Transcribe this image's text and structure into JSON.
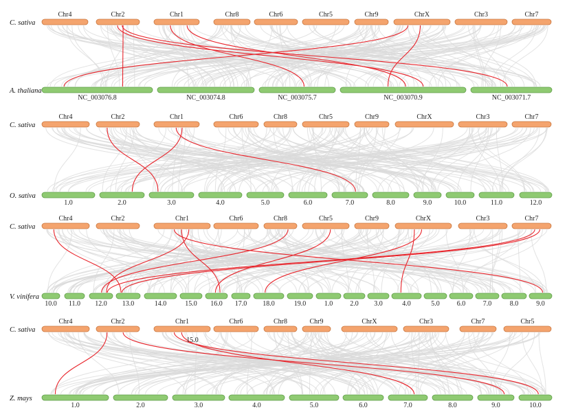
{
  "figure": {
    "title": "",
    "panels": [
      {
        "query_species": "C. sativa",
        "target_species": "A. thaliana",
        "query_chromosomes": [
          "Chr4",
          "Chr2",
          "Chr1",
          "Chr8",
          "Chr6",
          "Chr5",
          "Chr9",
          "ChrX",
          "Chr3",
          "Chr7"
        ],
        "target_chromosomes": [
          "NC_003076.8",
          "NC_003074.8",
          "NC_003075.7",
          "NC_003070.9",
          "NC_003071.7"
        ],
        "red_links": [
          {
            "from": "ChrX",
            "to": "NC_003076.8"
          },
          {
            "from": "Chr2",
            "to": "NC_003076.8"
          },
          {
            "from": "Chr2",
            "to": "NC_003070.9"
          },
          {
            "from": "Chr1",
            "to": "NC_003075.7"
          },
          {
            "from": "Chr1",
            "to": "NC_003070.9"
          },
          {
            "from": "Chr2",
            "to": "NC_003071.7"
          },
          {
            "from": "ChrX",
            "to": "NC_003070.9"
          }
        ]
      },
      {
        "query_species": "C. sativa",
        "target_species": "O. sativa",
        "query_chromosomes": [
          "Chr4",
          "Chr2",
          "Chr1",
          "Chr6",
          "Chr8",
          "Chr5",
          "Chr9",
          "ChrX",
          "Chr3",
          "Chr7"
        ],
        "target_chromosomes": [
          "1.0",
          "2.0",
          "3.0",
          "4.0",
          "5.0",
          "6.0",
          "7.0",
          "8.0",
          "9.0",
          "10.0",
          "11.0",
          "12.0"
        ],
        "red_links": [
          {
            "from": "Chr2",
            "to": "3.0"
          },
          {
            "from": "Chr1",
            "to": "2.0"
          },
          {
            "from": "Chr1",
            "to": "7.0"
          }
        ]
      },
      {
        "query_species": "C. sativa",
        "target_species": "V. vinifera",
        "query_chromosomes": [
          "Chr4",
          "Chr2",
          "Chr1",
          "Chr6",
          "Chr8",
          "Chr5",
          "Chr9",
          "ChrX",
          "Chr3",
          "Chr7"
        ],
        "target_chromosomes": [
          "10.0",
          "11.0",
          "12.0",
          "13.0",
          "14.0",
          "15.0",
          "16.0",
          "17.0",
          "18.0",
          "19.0",
          "1.0",
          "2.0",
          "3.0",
          "4.0",
          "5.0",
          "6.0",
          "7.0",
          "8.0",
          "9.0"
        ],
        "red_links": [
          {
            "from": "Chr4",
            "to": "13.0"
          },
          {
            "from": "Chr1",
            "to": "12.0"
          },
          {
            "from": "Chr1",
            "to": "16.0"
          },
          {
            "from": "Chr1",
            "to": "9.0"
          },
          {
            "from": "Chr8",
            "to": "12.0"
          },
          {
            "from": "Chr5",
            "to": "16.0"
          },
          {
            "from": "ChrX",
            "to": "18.0"
          },
          {
            "from": "ChrX",
            "to": "4.0"
          },
          {
            "from": "Chr7",
            "to": "13.0"
          },
          {
            "from": "Chr7",
            "to": "12.0"
          }
        ]
      },
      {
        "query_species": "C. sativa",
        "target_species": "Z. mays",
        "annotation": "15.0",
        "query_chromosomes": [
          "Chr4",
          "Chr2",
          "Chr1",
          "Chr6",
          "Chr8",
          "Chr9",
          "ChrX",
          "Chr3",
          "Chr7",
          "Chr5"
        ],
        "target_chromosomes": [
          "1.0",
          "2.0",
          "3.0",
          "4.0",
          "5.0",
          "6.0",
          "7.0",
          "8.0",
          "9.0",
          "10.0"
        ],
        "red_links": [
          {
            "from": "Chr2",
            "to": "1.0"
          },
          {
            "from": "Chr2",
            "to": "9.0"
          },
          {
            "from": "Chr1",
            "to": "7.0"
          },
          {
            "from": "Chr1",
            "to": "10.0"
          }
        ]
      }
    ]
  },
  "colors": {
    "query_bar": "#f4a46e",
    "query_stroke": "#c8763e",
    "target_bar": "#8fca72",
    "target_stroke": "#5f9d47",
    "gray_link": "#d9d9d9",
    "red_link": "#e8242b"
  }
}
